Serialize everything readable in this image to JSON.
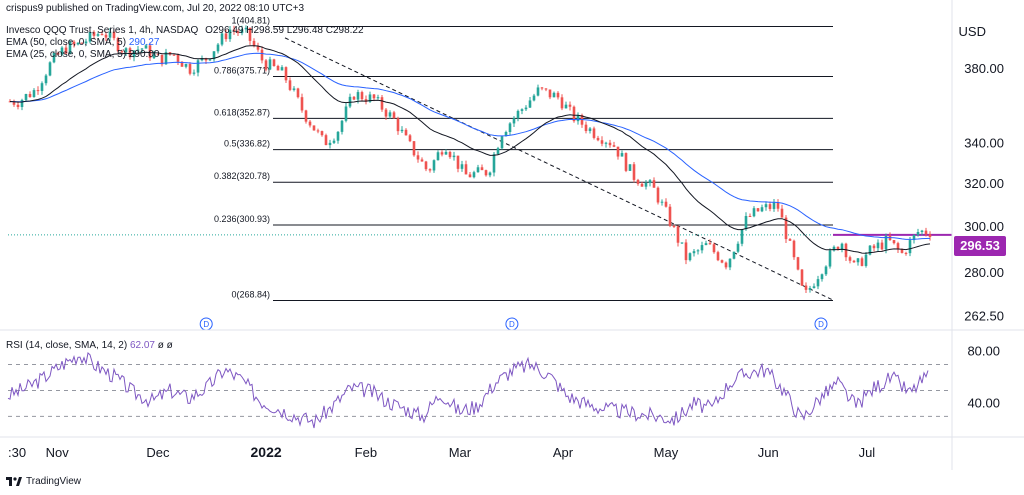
{
  "header": {
    "published": "crispus9 published on TradingView.com, Jul 20, 2022 08:10 UTC+3",
    "symbol": "Invesco QQQ Trust, Series 1, 4h, NASDAQ",
    "ohlc": "O296.49 H298.59 L296.48 C298.22",
    "ema50_label": "EMA (50, close, 0, SMA, 5)",
    "ema50_value": "290.27",
    "ema25_label": "EMA (25, close, 0, SMA, 5)",
    "ema25_value": "290.00",
    "rsi_label": "RSI (14, close, SMA, 14, 2)",
    "rsi_value": "62.07",
    "rsi_extra": "ø ø",
    "currency": "USD"
  },
  "footer": {
    "brand": "TradingView"
  },
  "colors": {
    "up": "#26a69a",
    "down": "#ef5350",
    "ema50": "#2962ff",
    "ema25": "#131722",
    "rsi": "#7e57c2",
    "price_tag": "#9c27b0",
    "fib": "#131722"
  },
  "chart_data": [
    {
      "type": "candlestick",
      "title": "",
      "yaxis_ticks": [
        262.5,
        280,
        300,
        320,
        340,
        380
      ],
      "yaxis_labels": [
        "262.50",
        "280.00",
        "300.00",
        "320.00",
        "340.00",
        "380.00"
      ],
      "ylim": [
        258,
        410
      ],
      "xaxis_labels": [
        ":30",
        "Nov",
        "Dec",
        "2022",
        "Feb",
        "Mar",
        "Apr",
        "May",
        "Jun",
        "Jul"
      ],
      "last_price": 296.53,
      "last_price_label": "296.53",
      "fibonacci": [
        {
          "label": "1(404.81)",
          "price": 404.81
        },
        {
          "label": "0.786(375.71)",
          "price": 375.71
        },
        {
          "label": "0.618(352.87)",
          "price": 352.87
        },
        {
          "label": "0.5(336.82)",
          "price": 336.82
        },
        {
          "label": "0.382(320.78)",
          "price": 320.78
        },
        {
          "label": "0.236(300.93)",
          "price": 300.93
        },
        {
          "label": "0(268.84)",
          "price": 268.84
        }
      ],
      "dividend_markers": [
        "D",
        "D",
        "D"
      ],
      "price_series": [
        {
          "date": "2021-10-25",
          "close": 362
        },
        {
          "date": "2021-10-30",
          "close": 368
        },
        {
          "date": "2021-11-04",
          "close": 384
        },
        {
          "date": "2021-11-08",
          "close": 392
        },
        {
          "date": "2021-11-12",
          "close": 394
        },
        {
          "date": "2021-11-19",
          "close": 402
        },
        {
          "date": "2021-11-26",
          "close": 390
        },
        {
          "date": "2021-12-01",
          "close": 392
        },
        {
          "date": "2021-12-06",
          "close": 385
        },
        {
          "date": "2021-12-10",
          "close": 389
        },
        {
          "date": "2021-12-15",
          "close": 380
        },
        {
          "date": "2021-12-20",
          "close": 386
        },
        {
          "date": "2021-12-27",
          "close": 403
        },
        {
          "date": "2022-01-01",
          "close": 400
        },
        {
          "date": "2022-01-06",
          "close": 384
        },
        {
          "date": "2022-01-12",
          "close": 377
        },
        {
          "date": "2022-01-18",
          "close": 356
        },
        {
          "date": "2022-01-24",
          "close": 340
        },
        {
          "date": "2022-01-28",
          "close": 346
        },
        {
          "date": "2022-02-02",
          "close": 366
        },
        {
          "date": "2022-02-08",
          "close": 363
        },
        {
          "date": "2022-02-14",
          "close": 352
        },
        {
          "date": "2022-02-18",
          "close": 340
        },
        {
          "date": "2022-02-24",
          "close": 326
        },
        {
          "date": "2022-03-01",
          "close": 340
        },
        {
          "date": "2022-03-07",
          "close": 324
        },
        {
          "date": "2022-03-14",
          "close": 326
        },
        {
          "date": "2022-03-18",
          "close": 346
        },
        {
          "date": "2022-03-24",
          "close": 358
        },
        {
          "date": "2022-03-29",
          "close": 368
        },
        {
          "date": "2022-04-04",
          "close": 364
        },
        {
          "date": "2022-04-08",
          "close": 354
        },
        {
          "date": "2022-04-14",
          "close": 346
        },
        {
          "date": "2022-04-20",
          "close": 340
        },
        {
          "date": "2022-04-26",
          "close": 324
        },
        {
          "date": "2022-05-02",
          "close": 318
        },
        {
          "date": "2022-05-06",
          "close": 306
        },
        {
          "date": "2022-05-12",
          "close": 286
        },
        {
          "date": "2022-05-18",
          "close": 292
        },
        {
          "date": "2022-05-24",
          "close": 284
        },
        {
          "date": "2022-05-30",
          "close": 304
        },
        {
          "date": "2022-06-03",
          "close": 308
        },
        {
          "date": "2022-06-08",
          "close": 310
        },
        {
          "date": "2022-06-12",
          "close": 290
        },
        {
          "date": "2022-06-16",
          "close": 270
        },
        {
          "date": "2022-06-22",
          "close": 284
        },
        {
          "date": "2022-06-27",
          "close": 294
        },
        {
          "date": "2022-07-01",
          "close": 282
        },
        {
          "date": "2022-07-06",
          "close": 290
        },
        {
          "date": "2022-07-11",
          "close": 294
        },
        {
          "date": "2022-07-15",
          "close": 288
        },
        {
          "date": "2022-07-20",
          "close": 298
        }
      ],
      "rsi": {
        "yaxis_labels": [
          "80.00",
          "40.00"
        ],
        "yaxis_ticks": [
          80,
          40
        ],
        "overbought": 70,
        "mid": 50,
        "oversold": 30,
        "ylim": [
          18,
          92
        ],
        "values": [
          46,
          52,
          60,
          70,
          78,
          68,
          60,
          48,
          42,
          50,
          44,
          52,
          66,
          58,
          42,
          36,
          30,
          26,
          38,
          52,
          50,
          42,
          36,
          30,
          48,
          34,
          38,
          56,
          66,
          70,
          62,
          46,
          40,
          36,
          34,
          32,
          30,
          28,
          40,
          36,
          56,
          64,
          66,
          50,
          28,
          44,
          56,
          38,
          52,
          60,
          48,
          62
        ]
      }
    }
  ]
}
